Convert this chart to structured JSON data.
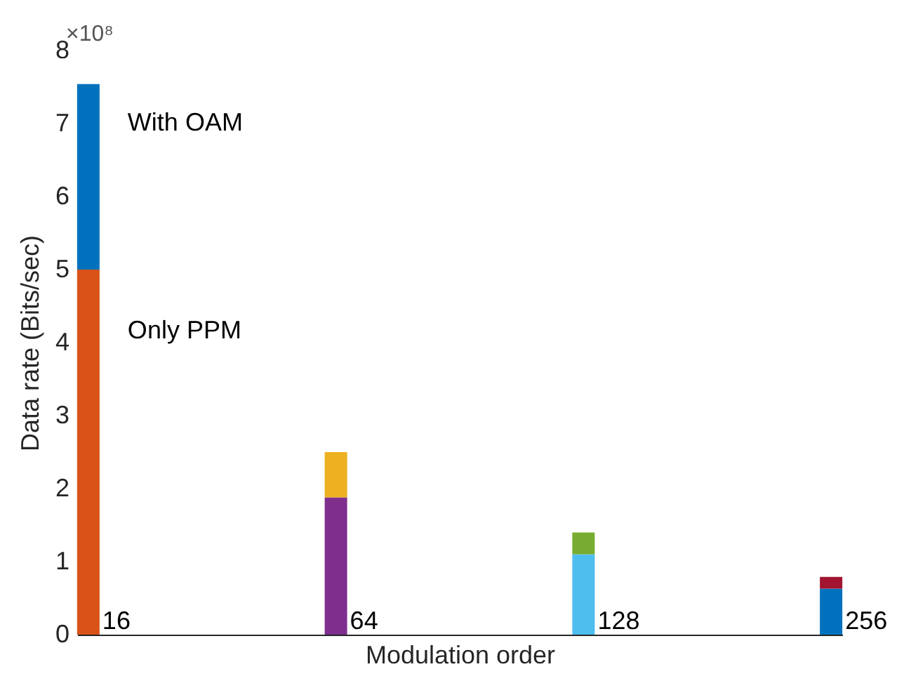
{
  "chart_data": {
    "type": "bar",
    "stacked": true,
    "xlabel": "Modulation order",
    "ylabel": "Data rate (Bits/sec)",
    "categories": [
      "16",
      "64",
      "128",
      "256"
    ],
    "series": [
      {
        "name": "Only PPM",
        "colors": [
          "#d95319",
          "#7e2f8e",
          "#4dbeee",
          "#0072bd"
        ],
        "values": [
          5.0,
          1.88,
          1.1,
          0.63
        ]
      },
      {
        "name": "With OAM",
        "colors": [
          "#0072bd",
          "#edb120",
          "#77ac30",
          "#a2142f"
        ],
        "values": [
          2.54,
          0.62,
          0.3,
          0.16
        ]
      }
    ],
    "ylim": [
      0,
      8
    ],
    "yticks": [
      0,
      1,
      2,
      3,
      4,
      5,
      6,
      7,
      8
    ],
    "grid": false,
    "annotations": [
      "×10⁸"
    ]
  }
}
